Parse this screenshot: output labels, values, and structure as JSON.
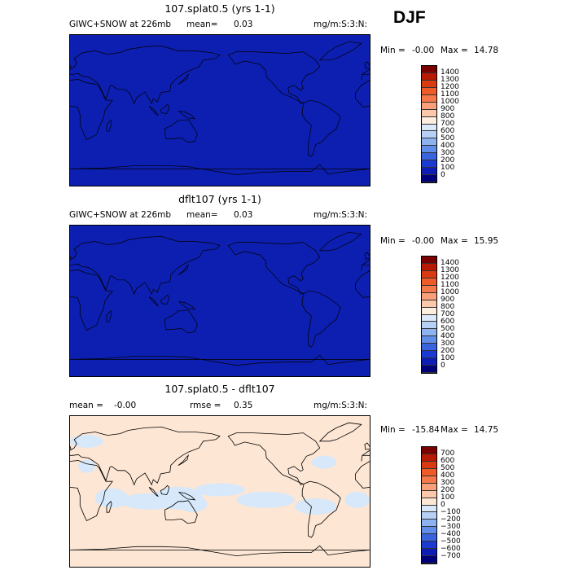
{
  "season": "DJF",
  "panels": [
    {
      "title": "107.splat0.5 (yrs 1-1)",
      "left_label": "GIWC+SNOW at 226mb",
      "mean_label": "mean=",
      "mean_value": "0.03",
      "rmse_label": "",
      "rmse_value": "",
      "units": "mg/m:S:3:N:",
      "min_label": "Min =",
      "min_value": "-0.00",
      "max_label": "Max =",
      "max_value": "14.78",
      "fill": "#0d1fb0",
      "colorbar": {
        "ticks": [
          "1400",
          "1300",
          "1200",
          "1100",
          "1000",
          "900",
          "800",
          "700",
          "600",
          "500",
          "400",
          "300",
          "200",
          "100",
          "0"
        ],
        "colors": [
          "#7a0000",
          "#b81a00",
          "#d93a10",
          "#ee5a28",
          "#f6774a",
          "#f9a07a",
          "#fcc8ab",
          "#fdeede",
          "#dce9fb",
          "#b7d0f6",
          "#8cb2f0",
          "#5f8de8",
          "#3a63de",
          "#1b3ad2",
          "#0c1cb5",
          "#00007a"
        ]
      }
    },
    {
      "title": "dflt107 (yrs 1-1)",
      "left_label": "GIWC+SNOW at 226mb",
      "mean_label": "mean=",
      "mean_value": "0.03",
      "rmse_label": "",
      "rmse_value": "",
      "units": "mg/m:S:3:N:",
      "min_label": "Min =",
      "min_value": "-0.00",
      "max_label": "Max =",
      "max_value": "15.95",
      "fill": "#0d1fb0",
      "colorbar": {
        "ticks": [
          "1400",
          "1300",
          "1200",
          "1100",
          "1000",
          "900",
          "800",
          "700",
          "600",
          "500",
          "400",
          "300",
          "200",
          "100",
          "0"
        ],
        "colors": [
          "#7a0000",
          "#b81a00",
          "#d93a10",
          "#ee5a28",
          "#f6774a",
          "#f9a07a",
          "#fcc8ab",
          "#fdeede",
          "#dce9fb",
          "#b7d0f6",
          "#8cb2f0",
          "#5f8de8",
          "#3a63de",
          "#1b3ad2",
          "#0c1cb5",
          "#00007a"
        ]
      }
    },
    {
      "title": "107.splat0.5 - dflt107",
      "left_label": "",
      "mean_label": "mean =",
      "mean_value": "-0.00",
      "rmse_label": "rmse =",
      "rmse_value": "0.35",
      "units": "mg/m:S:3:N:",
      "min_label": "Min =",
      "min_value": "-15.84",
      "max_label": "Max =",
      "max_value": "14.75",
      "fill": "#fde6d4",
      "patch": "#d6e8fa",
      "colorbar": {
        "ticks": [
          "700",
          "600",
          "500",
          "400",
          "300",
          "200",
          "100",
          "0",
          "−100",
          "−200",
          "−300",
          "−400",
          "−500",
          "−600",
          "−700"
        ],
        "colors": [
          "#7a0000",
          "#b81a00",
          "#d93a10",
          "#ee5a28",
          "#f6774a",
          "#f9a07a",
          "#fcc8ab",
          "#fde6d4",
          "#d6e8fa",
          "#b7d0f6",
          "#8cb2f0",
          "#5f8de8",
          "#3a63de",
          "#1b3ad2",
          "#0c1cb5",
          "#00007a"
        ]
      }
    }
  ],
  "chart_data": [
    {
      "type": "heatmap",
      "title": "107.splat0.5 (yrs 1-1)",
      "variable": "GIWC+SNOW at 226mb",
      "units": "mg/m:S:3:N:",
      "mean": 0.03,
      "min": -0.0,
      "max": 14.78,
      "colorbar_levels": [
        0,
        100,
        200,
        300,
        400,
        500,
        600,
        700,
        800,
        900,
        1000,
        1100,
        1200,
        1300,
        1400
      ]
    },
    {
      "type": "heatmap",
      "title": "dflt107 (yrs 1-1)",
      "variable": "GIWC+SNOW at 226mb",
      "units": "mg/m:S:3:N:",
      "mean": 0.03,
      "min": -0.0,
      "max": 15.95,
      "colorbar_levels": [
        0,
        100,
        200,
        300,
        400,
        500,
        600,
        700,
        800,
        900,
        1000,
        1100,
        1200,
        1300,
        1400
      ]
    },
    {
      "type": "heatmap",
      "title": "107.splat0.5 - dflt107",
      "units": "mg/m:S:3:N:",
      "mean": -0.0,
      "rmse": 0.35,
      "min": -15.84,
      "max": 14.75,
      "colorbar_levels": [
        -700,
        -600,
        -500,
        -400,
        -300,
        -200,
        -100,
        0,
        100,
        200,
        300,
        400,
        500,
        600,
        700
      ]
    }
  ]
}
